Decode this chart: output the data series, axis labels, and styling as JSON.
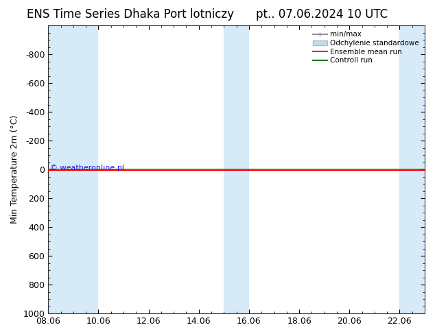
{
  "title_left": "ENS Time Series Dhaka Port lotniczy",
  "title_right": "pt.. 07.06.2024 10 UTC",
  "ylabel": "Min Temperature 2m (°C)",
  "ylim_bottom": -1000,
  "ylim_top": 1000,
  "yticks": [
    -800,
    -600,
    -400,
    -200,
    0,
    200,
    400,
    600,
    800,
    1000
  ],
  "x_tick_labels": [
    "08.06",
    "10.06",
    "12.06",
    "14.06",
    "16.06",
    "18.06",
    "20.06",
    "22.06"
  ],
  "x_tick_positions": [
    0,
    2,
    4,
    6,
    8,
    10,
    12,
    14
  ],
  "xlim": [
    0,
    15
  ],
  "shaded_bands": [
    {
      "start": 0,
      "end": 1
    },
    {
      "start": 1,
      "end": 2
    },
    {
      "start": 7.5,
      "end": 8.5
    },
    {
      "start": 14,
      "end": 15
    }
  ],
  "band_color": "#d6eaf8",
  "control_run_color": "#008000",
  "ensemble_mean_color": "#ff0000",
  "minmax_color": "#909090",
  "std_facecolor": "#c8dce8",
  "std_edgecolor": "#aabccc",
  "watermark": "© weatheronline.pl",
  "watermark_color": "#1a1aff",
  "legend_labels": [
    "min/max",
    "Odchylenie standardowe",
    "Ensemble mean run",
    "Controll run"
  ],
  "background_color": "#ffffff",
  "plot_bg_color": "#ffffff",
  "title_fontsize": 12,
  "axis_fontsize": 9,
  "tick_fontsize": 9
}
